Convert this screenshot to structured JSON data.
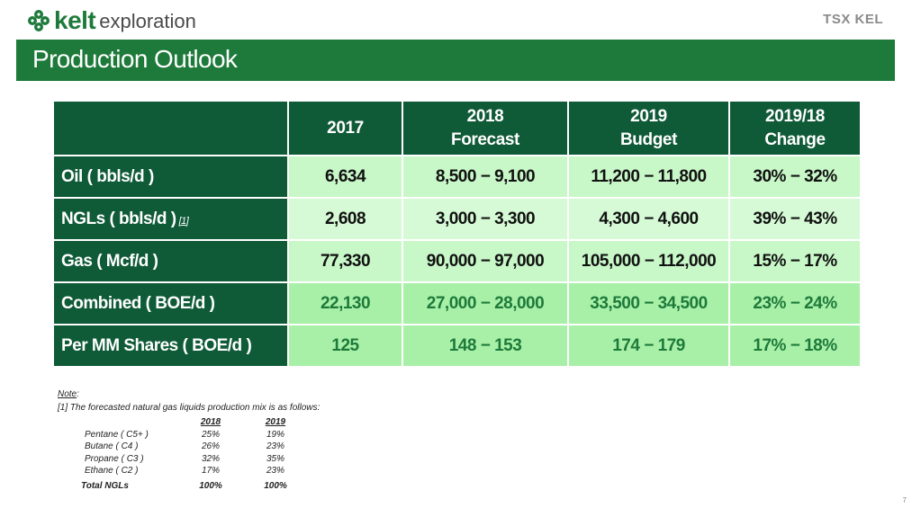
{
  "header": {
    "brand": "kelt",
    "brand_sub": "exploration",
    "exchange_logo": "TSX KEL",
    "title": "Production Outlook"
  },
  "table": {
    "columns": [
      "",
      "2017",
      "2018\nForecast",
      "2019\nBudget",
      "2019/18\nChange"
    ],
    "rows": [
      {
        "label": "Oil ( bbls/d )",
        "footnote": "",
        "values": [
          "6,634",
          "8,500 − 9,100",
          "11,200 − 11,800",
          "30% − 32%"
        ]
      },
      {
        "label": "NGLs ( bbls/d )",
        "footnote": "[1]",
        "values": [
          "2,608",
          "3,000 − 3,300",
          "4,300 − 4,600",
          "39% − 43%"
        ]
      },
      {
        "label": "Gas ( Mcf/d )",
        "footnote": "",
        "values": [
          "77,330",
          "90,000 − 97,000",
          "105,000 − 112,000",
          "15% − 17%"
        ]
      },
      {
        "label": "Combined ( BOE/d )",
        "footnote": "",
        "values": [
          "22,130",
          "27,000 − 28,000",
          "33,500 − 34,500",
          "23% − 24%"
        ]
      },
      {
        "label": "Per MM Shares ( BOE/d )",
        "footnote": "",
        "values": [
          "125",
          "148 − 153",
          "174 − 179",
          "17% − 18%"
        ]
      }
    ]
  },
  "notes": {
    "heading": "Note",
    "line1": "[1] The forecasted natural gas liquids production mix is as follows:",
    "mix_columns": [
      "2018",
      "2019"
    ],
    "mix_rows": [
      {
        "name": "Pentane ( C5+ )",
        "v2018": "25%",
        "v2019": "19%"
      },
      {
        "name": "Butane ( C4 )",
        "v2018": "26%",
        "v2019": "23%"
      },
      {
        "name": "Propane ( C3 )",
        "v2018": "32%",
        "v2019": "35%"
      },
      {
        "name": "Ethane ( C2 )",
        "v2018": "17%",
        "v2019": "23%"
      }
    ],
    "total": {
      "name": "Total NGLs",
      "v2018": "100%",
      "v2019": "100%"
    }
  },
  "page_number": "7",
  "colors": {
    "brand_green": "#1e7a3a",
    "header_dark_green": "#0f5a37",
    "cell_light_green": "#c8f7c8",
    "cell_mid_green": "#a8f0a8"
  }
}
